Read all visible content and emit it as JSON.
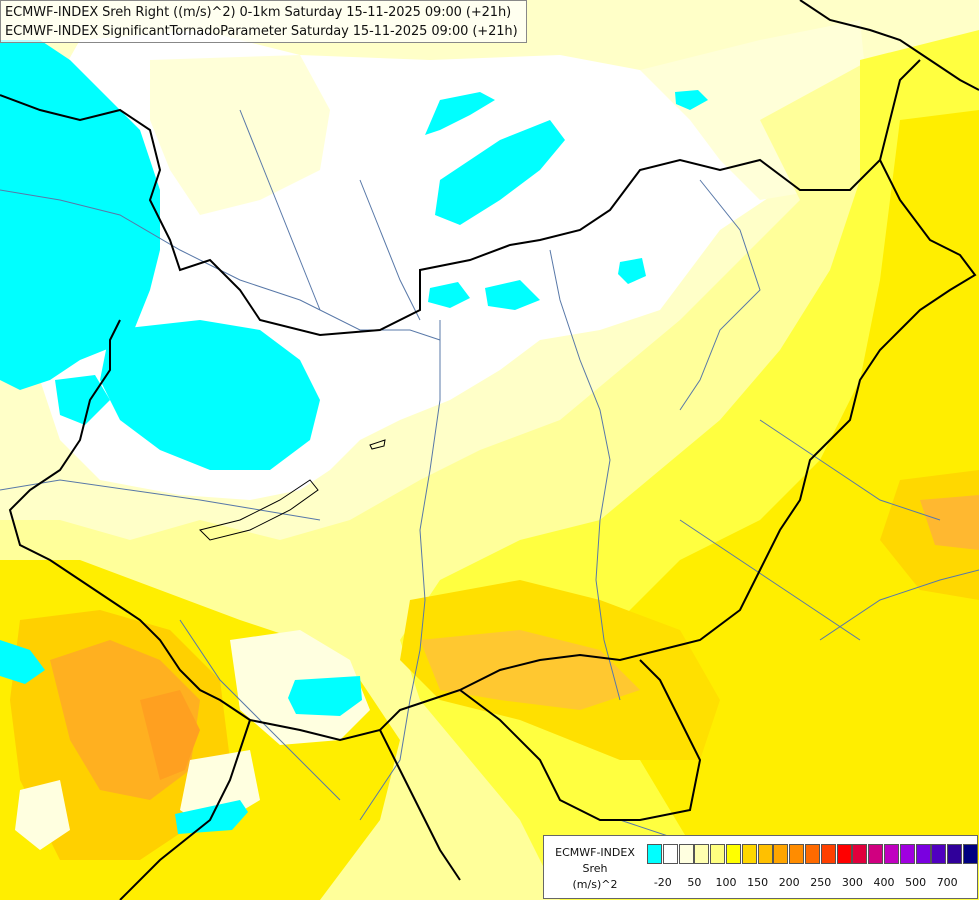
{
  "header": {
    "line1": "ECMWF-INDEX Sreh Right ((m/s)^2) 0-1km Saturday 15-11-2025 09:00 (+21h)",
    "line2": "ECMWF-INDEX SignificantTornadoParameter Saturday 15-11-2025 09:00 (+21h)"
  },
  "legend": {
    "title_line1": "ECMWF-INDEX",
    "title_line2": "Sreh",
    "title_line3": "(m/s)^2",
    "colors": [
      "#00ffff",
      "#ffffff",
      "#ffffe0",
      "#ffffb0",
      "#ffff80",
      "#ffff00",
      "#ffd700",
      "#ffc000",
      "#ffa500",
      "#ff8c00",
      "#ff6a00",
      "#ff4000",
      "#ff0000",
      "#e0003c",
      "#d00080",
      "#c000c0",
      "#a000e0",
      "#7a00e0",
      "#5000c0",
      "#30009a",
      "#000080"
    ],
    "ticks": [
      {
        "label": "-20",
        "pos": 1
      },
      {
        "label": "50",
        "pos": 3
      },
      {
        "label": "100",
        "pos": 5
      },
      {
        "label": "150",
        "pos": 7
      },
      {
        "label": "200",
        "pos": 9
      },
      {
        "label": "250",
        "pos": 11
      },
      {
        "label": "300",
        "pos": 13
      },
      {
        "label": "400",
        "pos": 15
      },
      {
        "label": "500",
        "pos": 17
      },
      {
        "label": "700",
        "pos": 19
      }
    ]
  },
  "map_colors": {
    "background": "#ffffc4",
    "white": "#ffffff",
    "pale": "#ffffd4",
    "light_yellow": "#ffff90",
    "yellow": "#ffff00",
    "gold": "#ffd700",
    "orange": "#ffb000",
    "deep_orange": "#ff9a20",
    "cyan": "#00ffff",
    "border": "#000000",
    "river": "#5878a8"
  }
}
